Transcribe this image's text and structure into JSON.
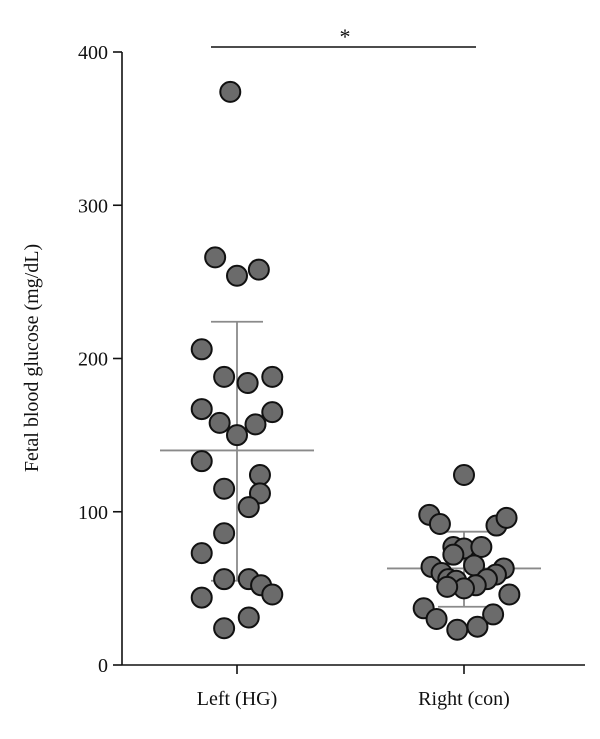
{
  "chart_data": {
    "type": "scatter",
    "ylabel": "Fetal blood glucose (mg/dL)",
    "ylim": [
      0,
      400
    ],
    "yticks": [
      0,
      100,
      200,
      300,
      400
    ],
    "categories": [
      "Left (HG)",
      "Right (con)"
    ],
    "significance": "*",
    "colors": {
      "dot_fill": "#6b6b6b",
      "dot_stroke": "#111111",
      "stat_line": "#8a8a8a"
    },
    "groups": [
      {
        "category": "Left (HG)",
        "mean": 140,
        "sd_upper": 224,
        "sd_lower": 55,
        "points": [
          {
            "x": -0.24,
            "y": 374
          },
          {
            "x": -0.78,
            "y": 266
          },
          {
            "x": 0.0,
            "y": 254
          },
          {
            "x": 0.78,
            "y": 258
          },
          {
            "x": -1.26,
            "y": 206
          },
          {
            "x": -0.46,
            "y": 188
          },
          {
            "x": 0.38,
            "y": 184
          },
          {
            "x": 1.26,
            "y": 188
          },
          {
            "x": -1.26,
            "y": 167
          },
          {
            "x": -0.62,
            "y": 158
          },
          {
            "x": 0.0,
            "y": 150
          },
          {
            "x": 0.66,
            "y": 157
          },
          {
            "x": 1.26,
            "y": 165
          },
          {
            "x": -1.26,
            "y": 133
          },
          {
            "x": 0.82,
            "y": 124
          },
          {
            "x": -0.46,
            "y": 115
          },
          {
            "x": 0.82,
            "y": 112
          },
          {
            "x": 0.42,
            "y": 103
          },
          {
            "x": -0.46,
            "y": 86
          },
          {
            "x": -1.26,
            "y": 73
          },
          {
            "x": -0.46,
            "y": 56
          },
          {
            "x": 0.42,
            "y": 56
          },
          {
            "x": 0.86,
            "y": 52
          },
          {
            "x": 1.26,
            "y": 46
          },
          {
            "x": -1.26,
            "y": 44
          },
          {
            "x": 0.42,
            "y": 31
          },
          {
            "x": -0.46,
            "y": 24
          }
        ]
      },
      {
        "category": "Right (con)",
        "mean": 63,
        "sd_upper": 87,
        "sd_lower": 38,
        "points": [
          {
            "x": 0.0,
            "y": 124
          },
          {
            "x": -1.24,
            "y": 98
          },
          {
            "x": -0.86,
            "y": 92
          },
          {
            "x": 1.16,
            "y": 91
          },
          {
            "x": 1.52,
            "y": 96
          },
          {
            "x": -0.38,
            "y": 77
          },
          {
            "x": 0.0,
            "y": 76
          },
          {
            "x": 0.62,
            "y": 77
          },
          {
            "x": -0.38,
            "y": 72
          },
          {
            "x": 0.36,
            "y": 65
          },
          {
            "x": -1.16,
            "y": 64
          },
          {
            "x": 1.42,
            "y": 63
          },
          {
            "x": -0.8,
            "y": 60
          },
          {
            "x": 1.14,
            "y": 59
          },
          {
            "x": -0.56,
            "y": 56
          },
          {
            "x": 0.82,
            "y": 56
          },
          {
            "x": -0.28,
            "y": 55
          },
          {
            "x": 0.42,
            "y": 52
          },
          {
            "x": 0.0,
            "y": 50
          },
          {
            "x": -0.6,
            "y": 51
          },
          {
            "x": 1.62,
            "y": 46
          },
          {
            "x": -1.44,
            "y": 37
          },
          {
            "x": 1.04,
            "y": 33
          },
          {
            "x": -0.98,
            "y": 30
          },
          {
            "x": 0.48,
            "y": 25
          },
          {
            "x": -0.24,
            "y": 23
          }
        ]
      }
    ]
  }
}
